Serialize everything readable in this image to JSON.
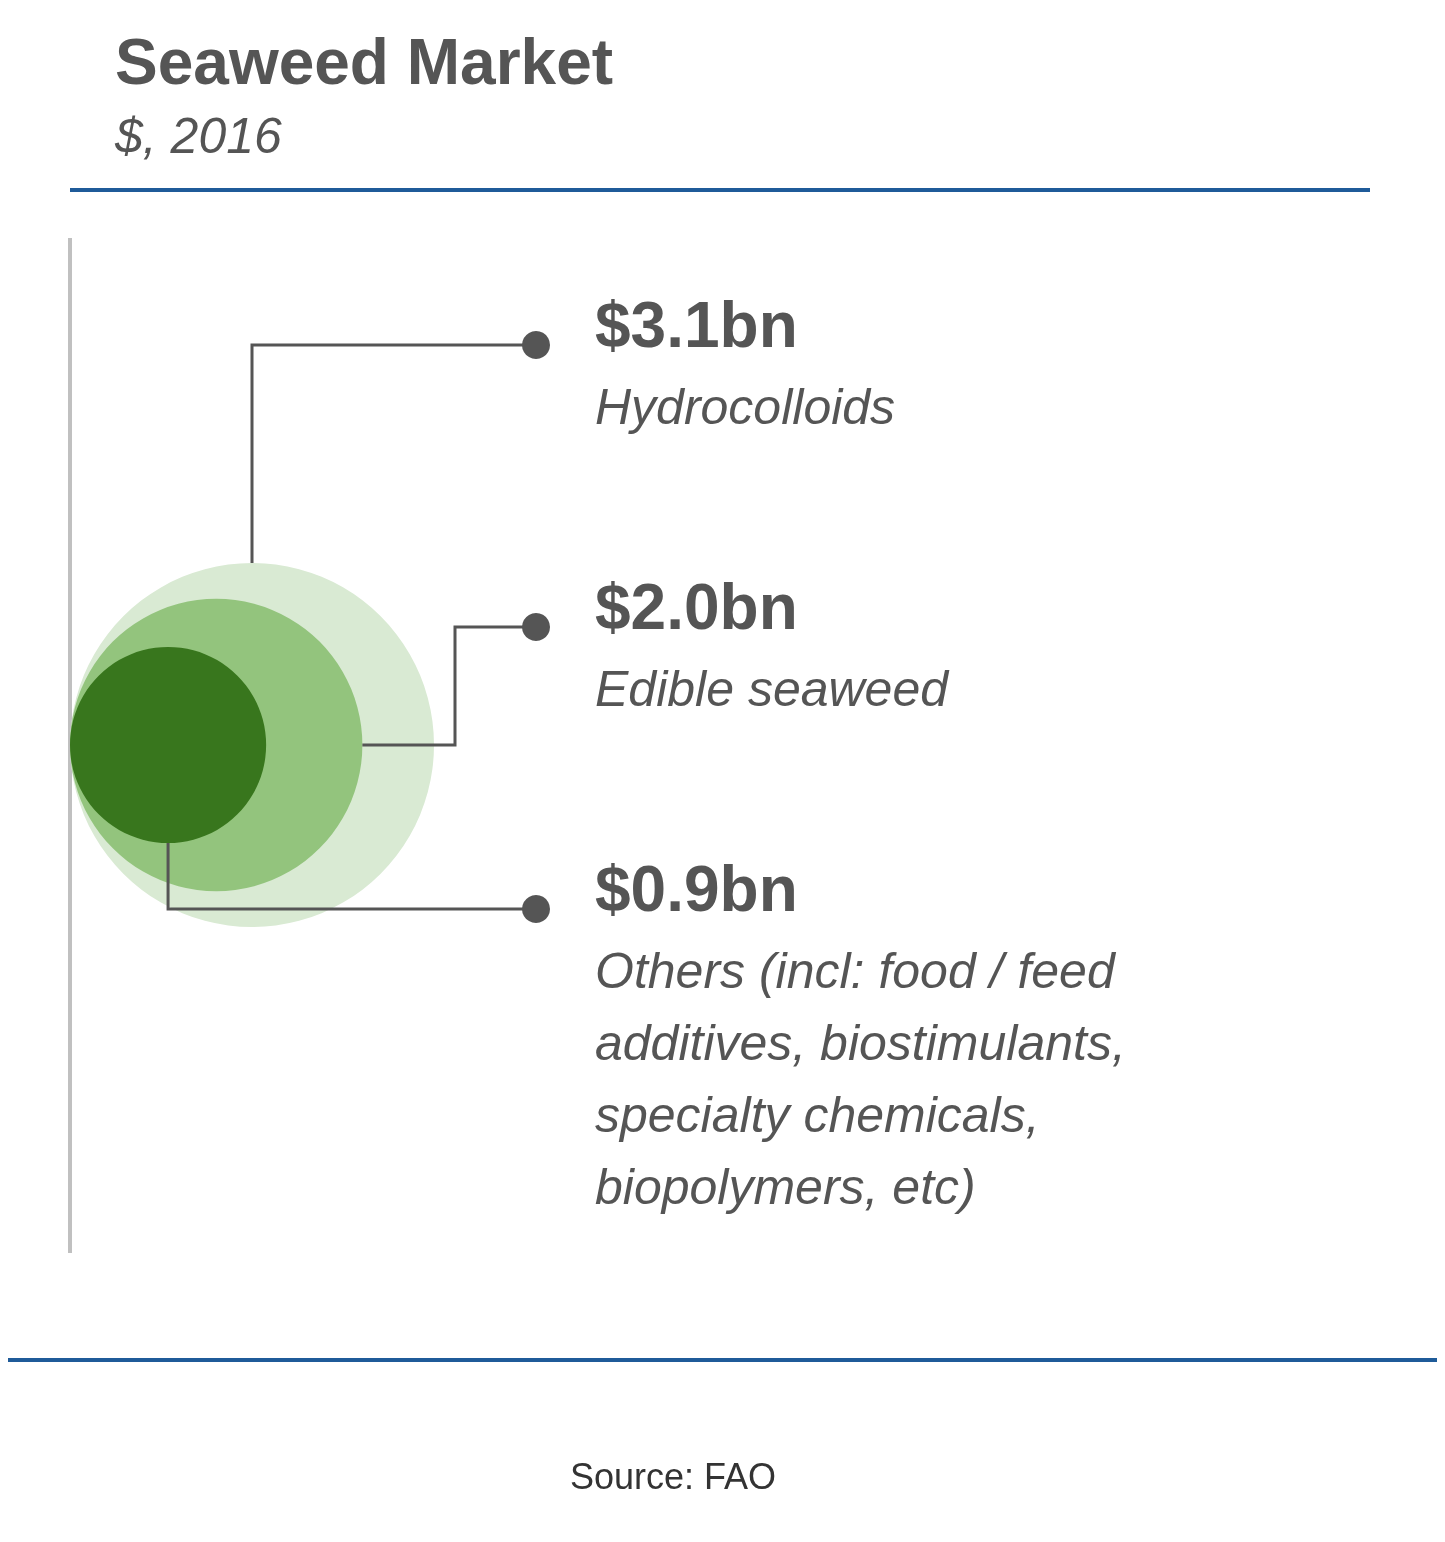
{
  "chart_data": {
    "type": "other",
    "title": "Seaweed Market",
    "subtitle": "$, 2016",
    "categories": [
      "Hydrocolloids",
      "Edible seaweed",
      "Others (incl: food / feed additives, biostimulants, specialty chemicals, biopolymers, etc)"
    ],
    "values": [
      3.1,
      2.0,
      0.9
    ],
    "value_labels": [
      "$3.1bn",
      "$2.0bn",
      "$0.9bn"
    ],
    "colors": [
      "#d9ead3",
      "#93c47d",
      "#38761d"
    ],
    "annotations": [
      "Source: FAO"
    ]
  }
}
